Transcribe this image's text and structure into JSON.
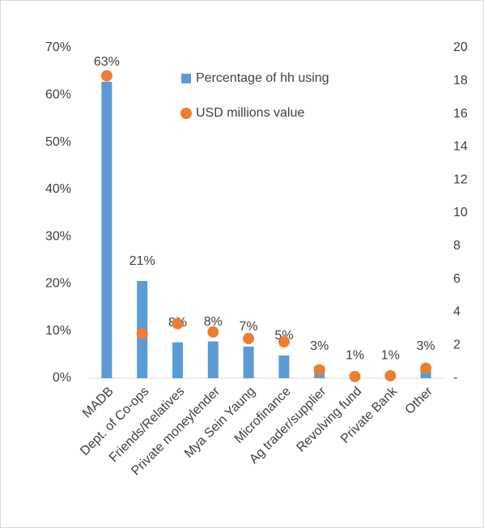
{
  "chart_data": {
    "type": "bar",
    "categories": [
      "MADB",
      "Dept. of Co-ops",
      "Friends/Relatives",
      "Private moneylender",
      "Mya Sein Yaung",
      "Microfinance",
      "Ag trader/supplier",
      "Revolving fund",
      "Private Bank",
      "Other"
    ],
    "series": [
      {
        "name": "Percentage of hh using",
        "type": "bar",
        "color": "#5b9bd5",
        "values": [
          62.8,
          20.6,
          7.6,
          7.8,
          6.7,
          4.8,
          2.6,
          0.6,
          0.6,
          2.6
        ],
        "value_labels": [
          "63%",
          "21%",
          "8%",
          "8%",
          "7%",
          "5%",
          "3%",
          "1%",
          "1%",
          "3%"
        ]
      },
      {
        "name": "USD millions value",
        "type": "scatter",
        "axis": "y2",
        "color": "#ed7d31",
        "values": [
          18.3,
          2.7,
          3.3,
          2.8,
          2.4,
          2.2,
          0.5,
          0.1,
          0.15,
          0.6
        ]
      }
    ],
    "ylim": [
      0,
      70
    ],
    "yticks": [
      {
        "value": 0,
        "label": "0%"
      },
      {
        "value": 10,
        "label": "10%"
      },
      {
        "value": 20,
        "label": "20%"
      },
      {
        "value": 30,
        "label": "30%"
      },
      {
        "value": 40,
        "label": "40%"
      },
      {
        "value": 50,
        "label": "50%"
      },
      {
        "value": 60,
        "label": "60%"
      },
      {
        "value": 70,
        "label": "70%"
      }
    ],
    "y2lim": [
      0,
      20
    ],
    "y2ticks": [
      {
        "value": 0,
        "label": "-"
      },
      2,
      4,
      6,
      8,
      10,
      12,
      14,
      16,
      18,
      20
    ],
    "grid": false,
    "legend": "top"
  }
}
